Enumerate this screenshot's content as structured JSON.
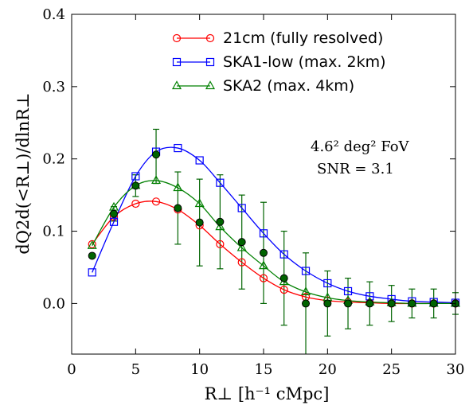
{
  "chart_data": {
    "type": "line",
    "title": "",
    "xlabel": "R⊥ [h⁻¹ cMpc]",
    "ylabel": "dQ2d(<R⊥)/dlnR⊥",
    "xlim": [
      0,
      30
    ],
    "ylim": [
      -0.07,
      0.4
    ],
    "x_ticks": [
      0,
      5,
      10,
      15,
      20,
      25,
      30
    ],
    "y_ticks": [
      0.0,
      0.1,
      0.2,
      0.3,
      0.4
    ],
    "x_tick_labels": [
      "0",
      "5",
      "10",
      "15",
      "20",
      "25",
      "30"
    ],
    "y_tick_labels": [
      "0.0",
      "0.1",
      "0.2",
      "0.3",
      "0.4"
    ],
    "grid": false,
    "legend_position": "top-right",
    "annotations": [
      "4.6² deg² FoV",
      "SNR = 3.1"
    ],
    "series": [
      {
        "name": "21cm (fully resolved)",
        "color": "#ff0000",
        "marker": "circle-open",
        "x": [
          1.6,
          3.3,
          5.0,
          6.6,
          8.3,
          10.0,
          11.6,
          13.3,
          15.0,
          16.6,
          18.3,
          20.0,
          21.6,
          23.3,
          25.0,
          26.6,
          28.3,
          30.0
        ],
        "values": [
          0.082,
          0.12,
          0.138,
          0.141,
          0.13,
          0.108,
          0.082,
          0.057,
          0.035,
          0.019,
          0.009,
          0.004,
          0.002,
          0.001,
          0.0,
          0.0,
          0.0,
          0.0
        ]
      },
      {
        "name": "SKA1-low (max. 2km)",
        "color": "#0000ff",
        "marker": "square-open",
        "x": [
          1.6,
          3.3,
          5.0,
          6.6,
          8.3,
          10.0,
          11.6,
          13.3,
          15.0,
          16.6,
          18.3,
          20.0,
          21.6,
          23.3,
          25.0,
          26.6,
          28.3,
          30.0
        ],
        "values": [
          0.043,
          0.113,
          0.176,
          0.21,
          0.215,
          0.198,
          0.167,
          0.132,
          0.097,
          0.068,
          0.045,
          0.028,
          0.017,
          0.01,
          0.006,
          0.003,
          0.002,
          0.001
        ]
      },
      {
        "name": "SKA2 (max. 4km)",
        "color": "#008000",
        "marker": "triangle-open",
        "x": [
          1.6,
          3.3,
          5.0,
          6.6,
          8.3,
          10.0,
          11.6,
          13.3,
          15.0,
          16.6,
          18.3,
          20.0,
          21.6,
          23.3,
          25.0,
          26.6,
          28.3,
          30.0
        ],
        "values": [
          0.08,
          0.133,
          0.163,
          0.17,
          0.16,
          0.138,
          0.106,
          0.077,
          0.052,
          0.03,
          0.016,
          0.008,
          0.004,
          0.002,
          0.001,
          0.0,
          0.0,
          0.0
        ]
      }
    ],
    "observed": {
      "name": "",
      "color": "#006400",
      "marker": "circle-filled",
      "x": [
        1.6,
        3.3,
        5.0,
        6.6,
        8.3,
        10.0,
        11.6,
        13.3,
        15.0,
        16.6,
        18.3,
        20.0,
        21.6,
        23.3,
        25.0,
        26.6,
        28.3,
        30.0
      ],
      "values": [
        0.066,
        0.124,
        0.163,
        0.206,
        0.132,
        0.112,
        0.113,
        0.085,
        0.07,
        0.035,
        0.0,
        0.0,
        0.0,
        0.0,
        0.0,
        0.0,
        0.0,
        0.0
      ],
      "err_low": [
        0.0,
        0.01,
        0.015,
        0.04,
        0.05,
        0.06,
        0.065,
        0.065,
        0.07,
        0.065,
        0.07,
        0.045,
        0.035,
        0.03,
        0.025,
        0.02,
        0.02,
        0.015
      ],
      "err_high": [
        0.0,
        0.01,
        0.015,
        0.035,
        0.05,
        0.06,
        0.065,
        0.065,
        0.07,
        0.065,
        0.07,
        0.045,
        0.035,
        0.03,
        0.025,
        0.02,
        0.02,
        0.015
      ]
    }
  }
}
